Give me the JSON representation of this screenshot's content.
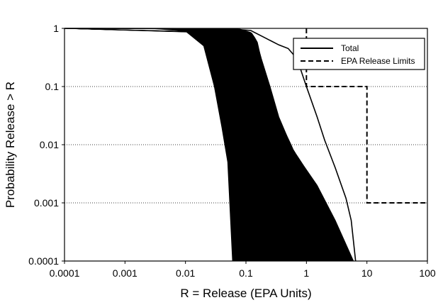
{
  "chart_data": {
    "type": "line",
    "xlabel": "R = Release (EPA Units)",
    "ylabel": "Probability Release > R",
    "x_scale": "log",
    "y_scale": "log",
    "xlim": [
      0.0001,
      100
    ],
    "ylim": [
      0.0001,
      1
    ],
    "x_ticks": [
      "0.0001",
      "0.001",
      "0.01",
      "0.1",
      "1",
      "10",
      "100"
    ],
    "y_ticks": [
      "1",
      "0.1",
      "0.01",
      "0.001",
      "0.0001"
    ],
    "grid": "horizontal dotted lines at 0.1, 0.01, 0.001",
    "legend_position": "top-right",
    "legend": [
      {
        "label": "Total",
        "style": "solid"
      },
      {
        "label": "EPA Release Limits",
        "style": "dashed"
      }
    ],
    "series": [
      {
        "name": "Total",
        "style": "solid",
        "color": "#000000",
        "note": "many realization CCDF curves drawn as a dense black band",
        "band_left_edge": [
          [
            0.0001,
            1
          ],
          [
            0.003,
            0.99
          ],
          [
            0.01,
            0.9
          ],
          [
            0.02,
            0.5
          ],
          [
            0.03,
            0.1
          ],
          [
            0.04,
            0.02
          ],
          [
            0.05,
            0.005
          ],
          [
            0.06,
            0.0001
          ]
        ],
        "band_right_edge": [
          [
            0.0001,
            1
          ],
          [
            0.04,
            0.995
          ],
          [
            0.08,
            0.97
          ],
          [
            0.12,
            0.85
          ],
          [
            0.15,
            0.6
          ],
          [
            0.18,
            0.3
          ],
          [
            0.25,
            0.1
          ],
          [
            0.35,
            0.03
          ],
          [
            0.6,
            0.008
          ],
          [
            1.5,
            0.002
          ],
          [
            3,
            0.0005
          ],
          [
            6,
            0.0001
          ]
        ],
        "outermost_curve": [
          [
            0.0001,
            1
          ],
          [
            0.05,
            0.99
          ],
          [
            0.12,
            0.92
          ],
          [
            0.2,
            0.7
          ],
          [
            0.35,
            0.52
          ],
          [
            0.5,
            0.45
          ],
          [
            0.7,
            0.3
          ],
          [
            1,
            0.1
          ],
          [
            1.5,
            0.03
          ],
          [
            2,
            0.012
          ],
          [
            3,
            0.004
          ],
          [
            4.5,
            0.0012
          ],
          [
            5.5,
            0.0005
          ],
          [
            6.5,
            0.0001
          ]
        ]
      },
      {
        "name": "EPA Release Limits",
        "style": "dashed",
        "color": "#000000",
        "points": [
          [
            1,
            1
          ],
          [
            1,
            0.1
          ],
          [
            10,
            0.1
          ],
          [
            10,
            0.001
          ],
          [
            100,
            0.001
          ]
        ]
      }
    ]
  }
}
